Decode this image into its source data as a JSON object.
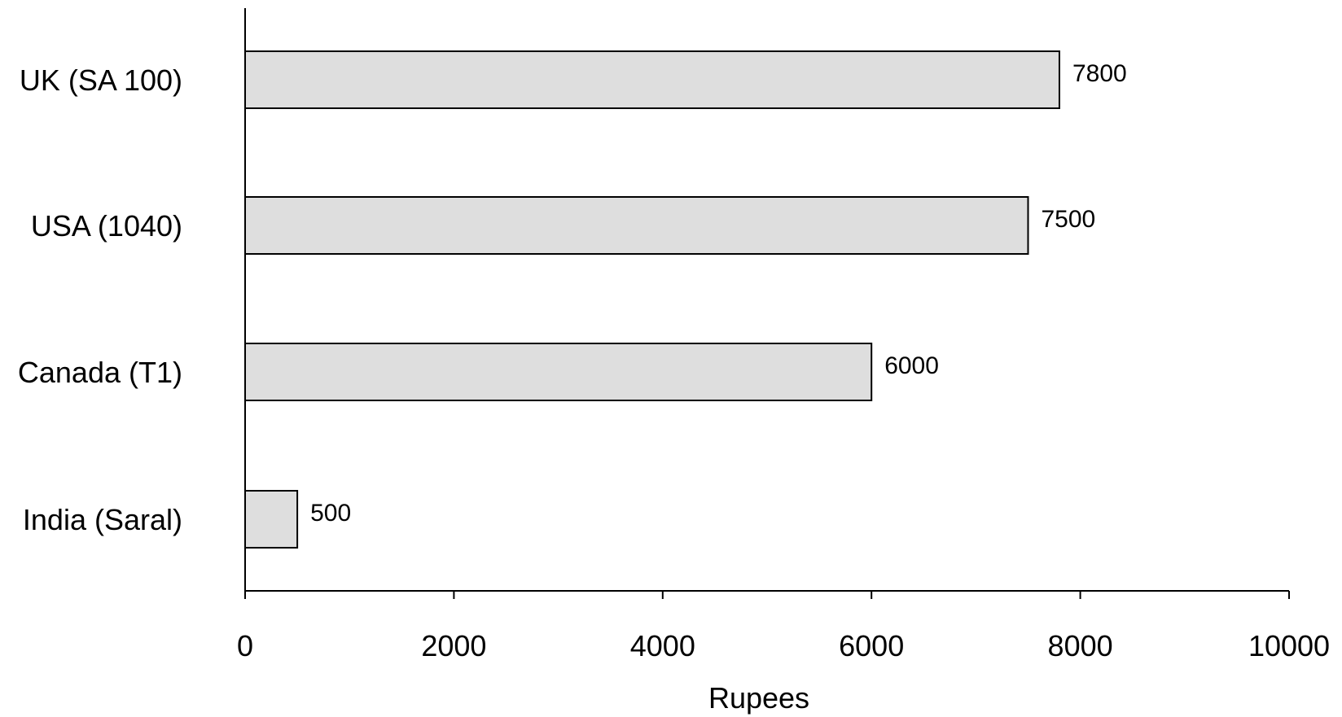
{
  "chart_data": {
    "type": "bar",
    "orientation": "horizontal",
    "categories": [
      "UK (SA 100)",
      "USA (1040)",
      "Canada (T1)",
      "India (Saral)"
    ],
    "values": [
      7800,
      7500,
      6000,
      500
    ],
    "data_labels": [
      "7800",
      "7500",
      "6000",
      "500"
    ],
    "xlabel": "Rupees",
    "ylabel": "",
    "xlim": [
      0,
      10000
    ],
    "x_ticks": [
      0,
      2000,
      4000,
      6000,
      8000,
      10000
    ],
    "x_tick_labels": [
      "0",
      "2000",
      "4000",
      "6000",
      "8000",
      "10000"
    ],
    "grid": false,
    "legend": "none",
    "colors": {
      "bar_fill": "#dedede",
      "bar_stroke": "#000000",
      "axis": "#000000"
    }
  }
}
